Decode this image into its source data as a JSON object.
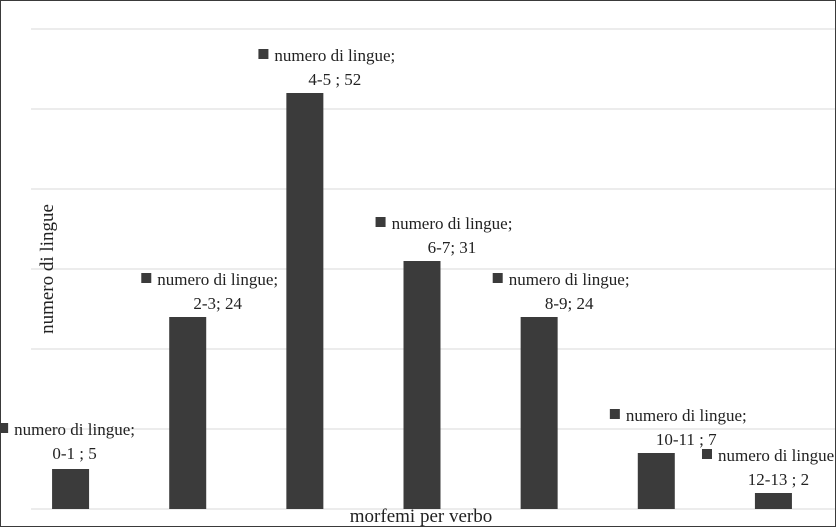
{
  "chart_data": {
    "type": "bar",
    "title": "",
    "xlabel": "morfemi per verbo",
    "ylabel": "numero di lingue",
    "ylim": [
      0,
      60
    ],
    "grid": true,
    "legend": "none",
    "categories": [
      "0-1",
      "2-3",
      "4-5",
      "6-7",
      "8-9",
      "10-11",
      "12-13"
    ],
    "series": [
      {
        "name": "numero di lingue",
        "values": [
          5,
          24,
          52,
          31,
          24,
          7,
          2
        ]
      }
    ],
    "data_labels": [
      {
        "series": "numero di lingue;",
        "value": "0-1 ; 5"
      },
      {
        "series": "numero di lingue;",
        "value": "2-3; 24"
      },
      {
        "series": "numero di lingue;",
        "value": "4-5 ; 52"
      },
      {
        "series": "numero di lingue;",
        "value": "6-7; 31"
      },
      {
        "series": "numero di lingue;",
        "value": "8-9; 24"
      },
      {
        "series": "numero di lingue;",
        "value": "10-11 ; 7"
      },
      {
        "series": "numero di lingue;",
        "value": "12-13 ; 2"
      }
    ],
    "colors": {
      "bar": "#3b3b3b",
      "grid": "#d9d9d9",
      "marker": "#3b3b3b"
    }
  }
}
